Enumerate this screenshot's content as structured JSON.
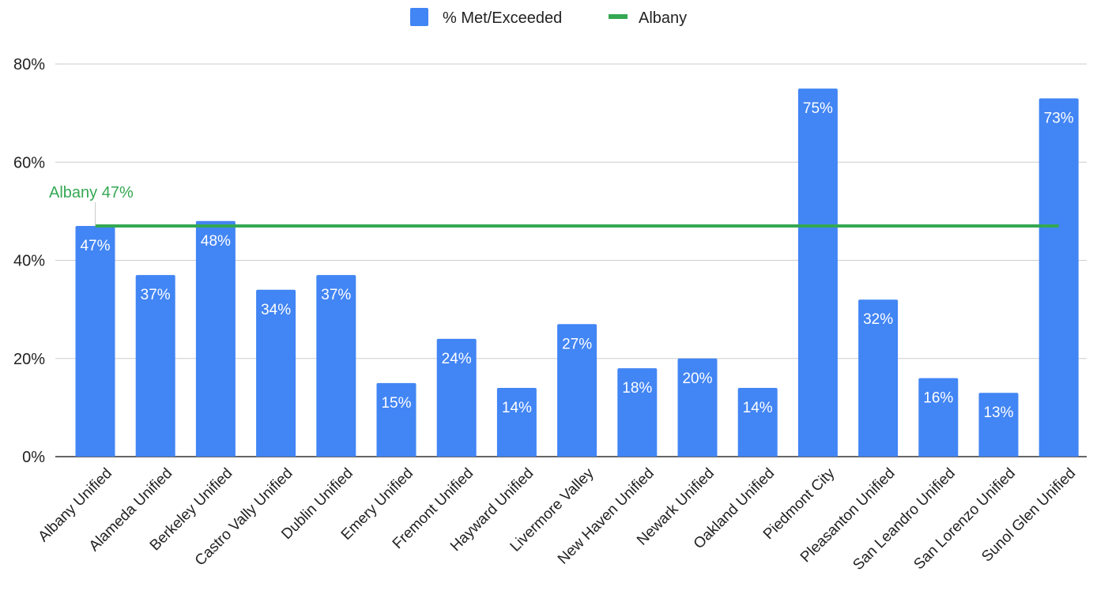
{
  "chart_data": {
    "type": "bar",
    "categories": [
      "Albany Unified",
      "Alameda Unified",
      "Berkeley Unified",
      "Castro Vally Unified",
      "Dublin Unified",
      "Emery Unified",
      "Fremont Unified",
      "Hayward Unified",
      "Livermore Valley",
      "New Haven Unified",
      "Newark Unified",
      "Oakland Unified",
      "Piedmont City",
      "Pleasanton Unified",
      "San Leandro Unified",
      "San Lorenzo Unified",
      "Sunol Glen Unified"
    ],
    "series": [
      {
        "name": "% Met/Exceeded",
        "color": "#4285f4",
        "values": [
          47,
          37,
          48,
          34,
          37,
          15,
          24,
          14,
          27,
          18,
          20,
          14,
          75,
          32,
          16,
          13,
          73
        ],
        "data_labels": [
          "47%",
          "37%",
          "48%",
          "34%",
          "37%",
          "15%",
          "24%",
          "14%",
          "27%",
          "18%",
          "20%",
          "14%",
          "75%",
          "32%",
          "16%",
          "13%",
          "73%"
        ]
      }
    ],
    "reference_line": {
      "name": "Albany",
      "value": 47,
      "label": "Albany 47%",
      "color": "#34a853"
    },
    "y_ticks": [
      0,
      20,
      40,
      60,
      80
    ],
    "y_tick_labels": [
      "0%",
      "20%",
      "40%",
      "60%",
      "80%"
    ],
    "ylim": [
      0,
      80
    ],
    "grid": true,
    "legend_position": "top-center",
    "title": "",
    "xlabel": "",
    "ylabel": ""
  }
}
